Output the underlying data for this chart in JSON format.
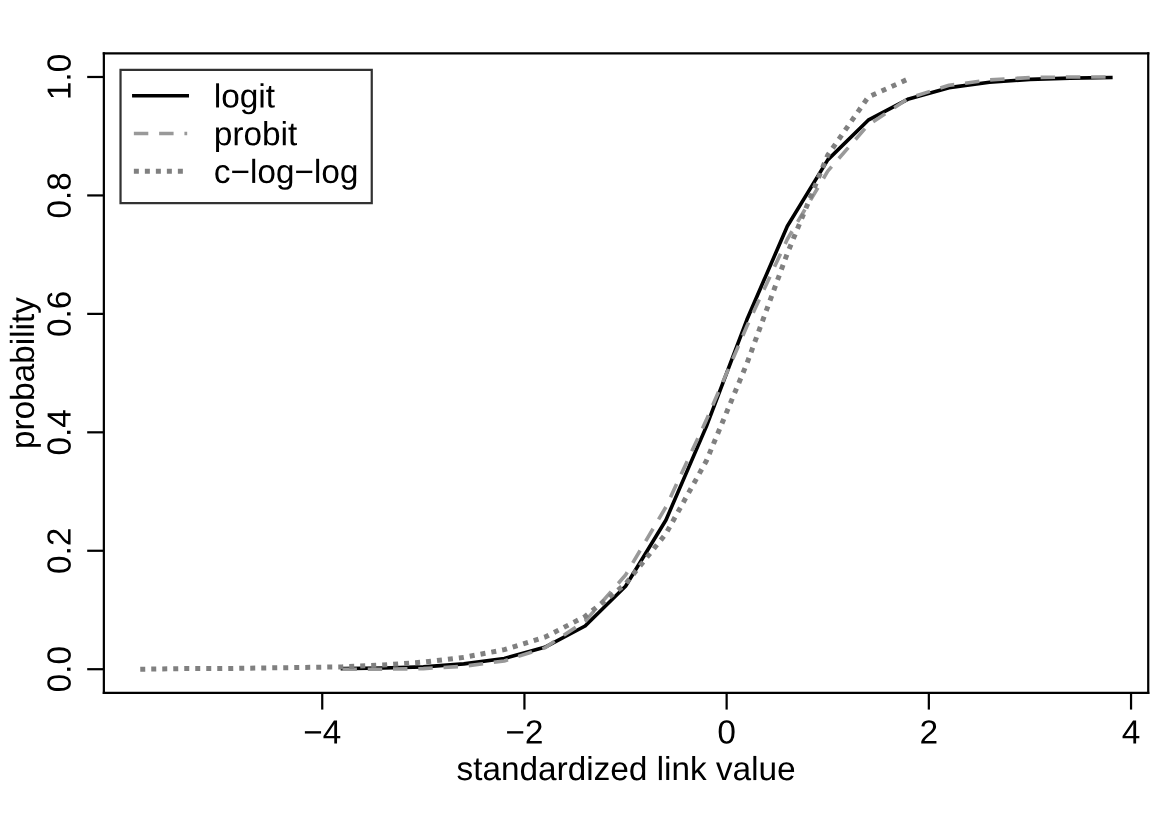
{
  "chart_data": {
    "type": "line",
    "xlabel": "standardized link value",
    "ylabel": "probability",
    "xlim": [
      -6.16,
      4.17
    ],
    "ylim": [
      -0.04,
      1.04
    ],
    "xticks": [
      {
        "value": -4,
        "label": "−4"
      },
      {
        "value": -2,
        "label": "−2"
      },
      0,
      2,
      4
    ],
    "yticks": [
      {
        "value": 0,
        "label": "0.0"
      },
      {
        "value": 0.2,
        "label": "0.2"
      },
      {
        "value": 0.4,
        "label": "0.4"
      },
      {
        "value": 0.6,
        "label": "0.6"
      },
      {
        "value": 0.8,
        "label": "0.8"
      },
      {
        "value": 1,
        "label": "1.0"
      }
    ],
    "legend": "top left",
    "series": [
      {
        "name": "logit",
        "color": "#000000",
        "line_style": "solid",
        "x": [
          -3.8,
          -3.4,
          -3.0,
          -2.6,
          -2.2,
          -1.8,
          -1.4,
          -1.0,
          -0.6,
          -0.2,
          0,
          0.2,
          0.6,
          1.0,
          1.4,
          1.8,
          2.2,
          2.6,
          3.0,
          3.4,
          3.8
        ],
        "values": [
          0.001,
          0.002,
          0.004,
          0.009,
          0.018,
          0.037,
          0.073,
          0.14,
          0.252,
          0.41,
          0.5,
          0.59,
          0.748,
          0.86,
          0.927,
          0.963,
          0.982,
          0.991,
          0.996,
          0.998,
          0.999
        ]
      },
      {
        "name": "probit",
        "color": "#999999",
        "line_style": "dashed",
        "x": [
          -3.8,
          -3.4,
          -3.0,
          -2.6,
          -2.2,
          -1.8,
          -1.4,
          -1.0,
          -0.6,
          -0.2,
          0,
          0.2,
          0.6,
          1.0,
          1.4,
          1.8,
          2.2,
          2.6,
          3.0,
          3.4,
          3.8
        ],
        "values": [
          0.0,
          0.0,
          0.001,
          0.005,
          0.014,
          0.036,
          0.081,
          0.159,
          0.274,
          0.421,
          0.5,
          0.579,
          0.726,
          0.841,
          0.919,
          0.964,
          0.986,
          0.995,
          0.999,
          1.0,
          1.0
        ]
      },
      {
        "name": "c−log−log",
        "color": "#808080",
        "line_style": "dotted",
        "x": [
          -5.8,
          -5.4,
          -5.0,
          -4.6,
          -4.2,
          -3.8,
          -3.4,
          -3.0,
          -2.6,
          -2.2,
          -1.8,
          -1.4,
          -1.0,
          -0.6,
          -0.2,
          0.2,
          0.6,
          1.0,
          1.4,
          1.8
        ],
        "values": [
          0.0,
          0.001,
          0.001,
          0.002,
          0.003,
          0.004,
          0.007,
          0.012,
          0.02,
          0.033,
          0.054,
          0.089,
          0.144,
          0.229,
          0.352,
          0.516,
          0.702,
          0.868,
          0.966,
          0.997
        ]
      }
    ]
  }
}
